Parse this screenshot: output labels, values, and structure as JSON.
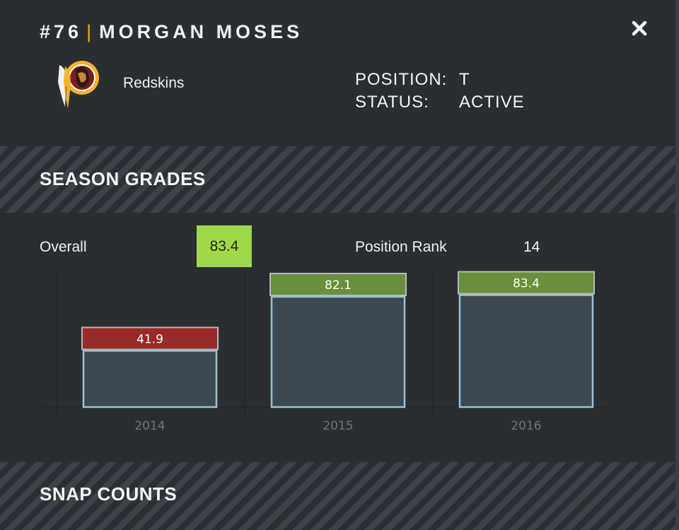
{
  "header": {
    "number": "#76",
    "separator": "|",
    "name": "MORGAN MOSES"
  },
  "team": {
    "name": "Redskins",
    "logo_icon": "redskins-logo"
  },
  "player_info": {
    "position_label": "POSITION:",
    "position_value": "T",
    "status_label": "STATUS:",
    "status_value": "ACTIVE"
  },
  "sections": {
    "season_grades": "SEASON GRADES",
    "snap_counts": "SNAP COUNTS"
  },
  "summary": {
    "overall_label": "Overall",
    "overall_value": "83.4",
    "rank_label": "Position Rank",
    "rank_value": "14"
  },
  "colors": {
    "grade_high": "#6a8f3c",
    "grade_low": "#9a2a2a",
    "overall_badge": "#9fd84a",
    "accent": "#e6b022"
  },
  "chart_data": {
    "type": "bar",
    "categories": [
      "2014",
      "2015",
      "2016"
    ],
    "values": [
      41.9,
      82.1,
      83.4
    ],
    "ylim": [
      0,
      100
    ],
    "grid": false
  }
}
